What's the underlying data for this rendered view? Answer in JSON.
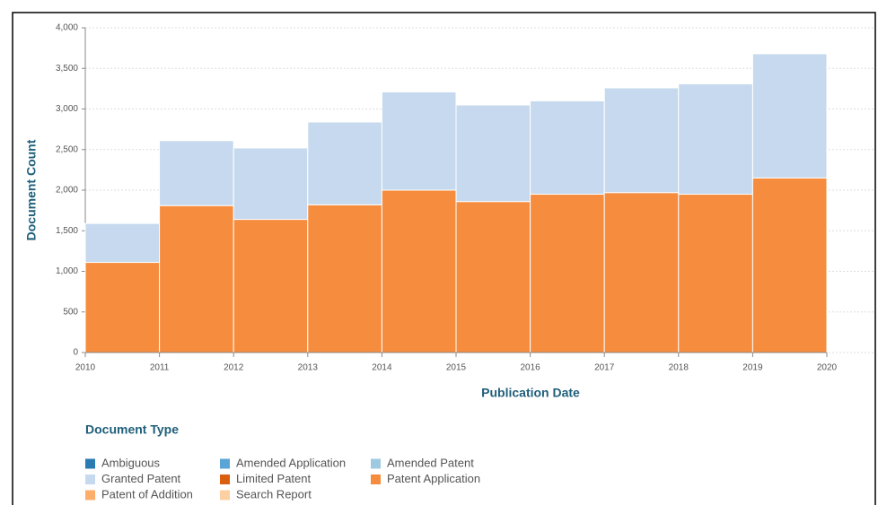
{
  "chart_data": {
    "type": "histogram",
    "x_label": "Publication Date",
    "y_label": "Document Count",
    "legend_title": "Document Type",
    "bins": [
      2010,
      2011,
      2012,
      2013,
      2014,
      2015,
      2016,
      2017,
      2018,
      2019,
      2020
    ],
    "series": [
      {
        "name": "Ambiguous",
        "color": "#2b7bb3",
        "values": [
          0,
          0,
          0,
          0,
          0,
          0,
          0,
          0,
          0,
          0
        ]
      },
      {
        "name": "Amended Application",
        "color": "#5ba4d6",
        "values": [
          0,
          0,
          0,
          0,
          0,
          0,
          0,
          0,
          0,
          0
        ]
      },
      {
        "name": "Amended Patent",
        "color": "#9ecae1",
        "values": [
          0,
          0,
          0,
          0,
          0,
          0,
          0,
          0,
          0,
          0
        ]
      },
      {
        "name": "Granted Patent",
        "color": "#c6d9ee",
        "values": [
          480,
          800,
          880,
          1020,
          1210,
          1190,
          1150,
          1290,
          1360,
          1530
        ]
      },
      {
        "name": "Limited Patent",
        "color": "#d95f0e",
        "values": [
          0,
          0,
          0,
          0,
          0,
          0,
          0,
          0,
          0,
          0
        ]
      },
      {
        "name": "Patent Application",
        "color": "#f68c3d",
        "values": [
          1110,
          1810,
          1640,
          1820,
          2000,
          1860,
          1950,
          1970,
          1950,
          2150
        ]
      },
      {
        "name": "Patent of Addition",
        "color": "#fdae6b",
        "values": [
          0,
          0,
          0,
          0,
          0,
          0,
          0,
          0,
          0,
          0
        ]
      },
      {
        "name": "Search Report",
        "color": "#fdd0a2",
        "values": [
          0,
          0,
          0,
          0,
          0,
          0,
          0,
          0,
          0,
          0
        ]
      }
    ],
    "xlim": [
      2010,
      2020
    ],
    "xticks": [
      2010,
      2011,
      2012,
      2013,
      2014,
      2015,
      2016,
      2017,
      2018,
      2019,
      2020
    ],
    "ylim": [
      0,
      4000
    ],
    "yticks": [
      0,
      500,
      {
        "value": 1000,
        "label": "1,000"
      },
      {
        "value": 1500,
        "label": "1,500"
      },
      {
        "value": 2000,
        "label": "2,000"
      },
      {
        "value": 2500,
        "label": "2,500"
      },
      {
        "value": 3000,
        "label": "3,000"
      },
      {
        "value": 3500,
        "label": "3,500"
      },
      {
        "value": 4000,
        "label": "4,000"
      }
    ],
    "grid": true,
    "stacked": true
  }
}
